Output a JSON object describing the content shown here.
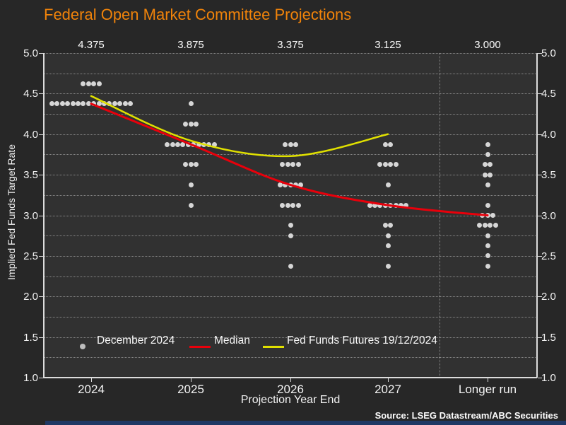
{
  "chart_data": {
    "type": "scatter",
    "subtype": "fomc-dot-plot",
    "title": "Federal Open Market Committee Projections",
    "xlabel": "Projection Year End",
    "ylabel": "Implied Fed Funds Target Rate",
    "ylim": [
      1.0,
      5.0
    ],
    "y_tick_step": 0.5,
    "grid_step": 0.25,
    "y_tick_labels": [
      "5.0",
      "4.5",
      "4.0",
      "3.5",
      "3.0",
      "2.5",
      "2.0",
      "1.5",
      "1.0"
    ],
    "grid": "dotted, every 0.25; dotted vertical separator before Longer run",
    "categories": [
      "2024",
      "2025",
      "2026",
      "2027",
      "Longer run"
    ],
    "median_top_labels": [
      "4.375",
      "3.875",
      "3.375",
      "3.125",
      "3.000"
    ],
    "series": [
      {
        "name": "December 2024",
        "type": "dots",
        "dots_by_category": [
          {
            "category": "2024",
            "levels": [
              {
                "value": 4.625,
                "count": 4
              },
              {
                "value": 4.375,
                "count": 16
              }
            ]
          },
          {
            "category": "2025",
            "levels": [
              {
                "value": 4.375,
                "count": 1
              },
              {
                "value": 4.125,
                "count": 3
              },
              {
                "value": 3.875,
                "count": 10
              },
              {
                "value": 3.625,
                "count": 3
              },
              {
                "value": 3.375,
                "count": 1
              },
              {
                "value": 3.125,
                "count": 1
              }
            ]
          },
          {
            "category": "2026",
            "levels": [
              {
                "value": 3.875,
                "count": 3
              },
              {
                "value": 3.625,
                "count": 4
              },
              {
                "value": 3.375,
                "count": 5
              },
              {
                "value": 3.125,
                "count": 4
              },
              {
                "value": 2.875,
                "count": 1
              },
              {
                "value": 2.75,
                "count": 1
              },
              {
                "value": 2.375,
                "count": 1
              }
            ]
          },
          {
            "category": "2027",
            "levels": [
              {
                "value": 3.875,
                "count": 2
              },
              {
                "value": 3.625,
                "count": 4
              },
              {
                "value": 3.375,
                "count": 1
              },
              {
                "value": 3.125,
                "count": 8
              },
              {
                "value": 2.875,
                "count": 2
              },
              {
                "value": 2.75,
                "count": 1
              },
              {
                "value": 2.625,
                "count": 1
              },
              {
                "value": 2.375,
                "count": 1
              }
            ]
          },
          {
            "category": "Longer run",
            "levels": [
              {
                "value": 3.875,
                "count": 1
              },
              {
                "value": 3.75,
                "count": 1
              },
              {
                "value": 3.625,
                "count": 2
              },
              {
                "value": 3.5,
                "count": 2
              },
              {
                "value": 3.375,
                "count": 1
              },
              {
                "value": 3.125,
                "count": 1
              },
              {
                "value": 3.0,
                "count": 3
              },
              {
                "value": 2.875,
                "count": 4
              },
              {
                "value": 2.75,
                "count": 1
              },
              {
                "value": 2.625,
                "count": 1
              },
              {
                "value": 2.5,
                "count": 1
              },
              {
                "value": 2.375,
                "count": 1
              }
            ]
          }
        ]
      },
      {
        "name": "Median",
        "type": "line",
        "categories": [
          "2024",
          "2025",
          "2026",
          "2027",
          "Longer run"
        ],
        "values": [
          4.375,
          3.875,
          3.375,
          3.125,
          3.0
        ]
      },
      {
        "name": "Fed Funds Futures 19/12/2024",
        "type": "line",
        "categories": [
          "2024",
          "2025",
          "2026",
          "2027"
        ],
        "values": [
          4.47,
          3.92,
          3.73,
          4.0
        ]
      }
    ],
    "legend": {
      "position": "bottom inside plot",
      "items": [
        {
          "label": "December 2024",
          "marker": "dot"
        },
        {
          "label": "Median",
          "marker": "line"
        },
        {
          "label": "Fed Funds Futures 19/12/2024",
          "marker": "line"
        }
      ]
    },
    "source": "Source: LSEG Datastream/ABC Securities",
    "colors": {
      "title": "#f0830a",
      "median_line": "#e8000b",
      "futures_line": "#e0e000",
      "dots": "#d6d6d6",
      "background": "#272727",
      "plot_background": "#313131",
      "grid": "#8a8a8a",
      "axis": "#dcdcdc",
      "text": "#f2f2f2",
      "source_bar": "#1f3864"
    }
  }
}
